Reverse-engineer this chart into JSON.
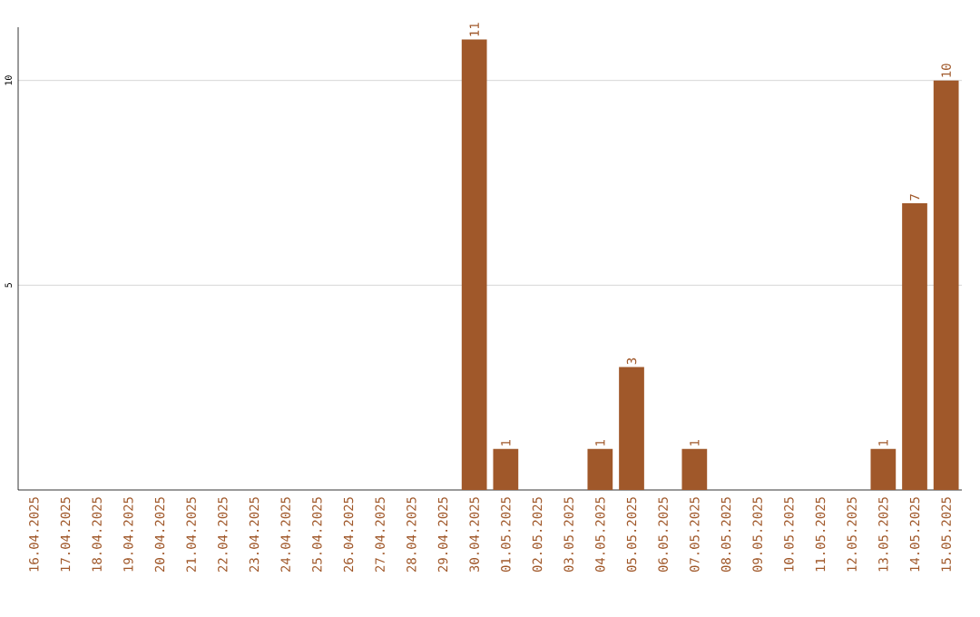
{
  "chart_data": {
    "type": "bar",
    "categories": [
      "16.04.2025",
      "17.04.2025",
      "18.04.2025",
      "19.04.2025",
      "20.04.2025",
      "21.04.2025",
      "22.04.2025",
      "23.04.2025",
      "24.04.2025",
      "25.04.2025",
      "26.04.2025",
      "27.04.2025",
      "28.04.2025",
      "29.04.2025",
      "30.04.2025",
      "01.05.2025",
      "02.05.2025",
      "03.05.2025",
      "04.05.2025",
      "05.05.2025",
      "06.05.2025",
      "07.05.2025",
      "08.05.2025",
      "09.05.2025",
      "10.05.2025",
      "11.05.2025",
      "12.05.2025",
      "13.05.2025",
      "14.05.2025",
      "15.05.2025"
    ],
    "values": [
      0,
      0,
      0,
      0,
      0,
      0,
      0,
      0,
      0,
      0,
      0,
      0,
      0,
      0,
      11,
      1,
      0,
      0,
      1,
      3,
      0,
      1,
      0,
      0,
      0,
      0,
      0,
      1,
      7,
      10
    ],
    "value_labels": [
      null,
      null,
      null,
      null,
      null,
      null,
      null,
      null,
      null,
      null,
      null,
      null,
      null,
      null,
      "11",
      "1",
      null,
      null,
      "1",
      "3",
      null,
      "1",
      null,
      null,
      null,
      null,
      null,
      "1",
      "7",
      "10"
    ],
    "color": "#a0582a",
    "ylim": [
      0,
      11.3
    ],
    "yticks": [
      5,
      10
    ],
    "grid": "y"
  }
}
